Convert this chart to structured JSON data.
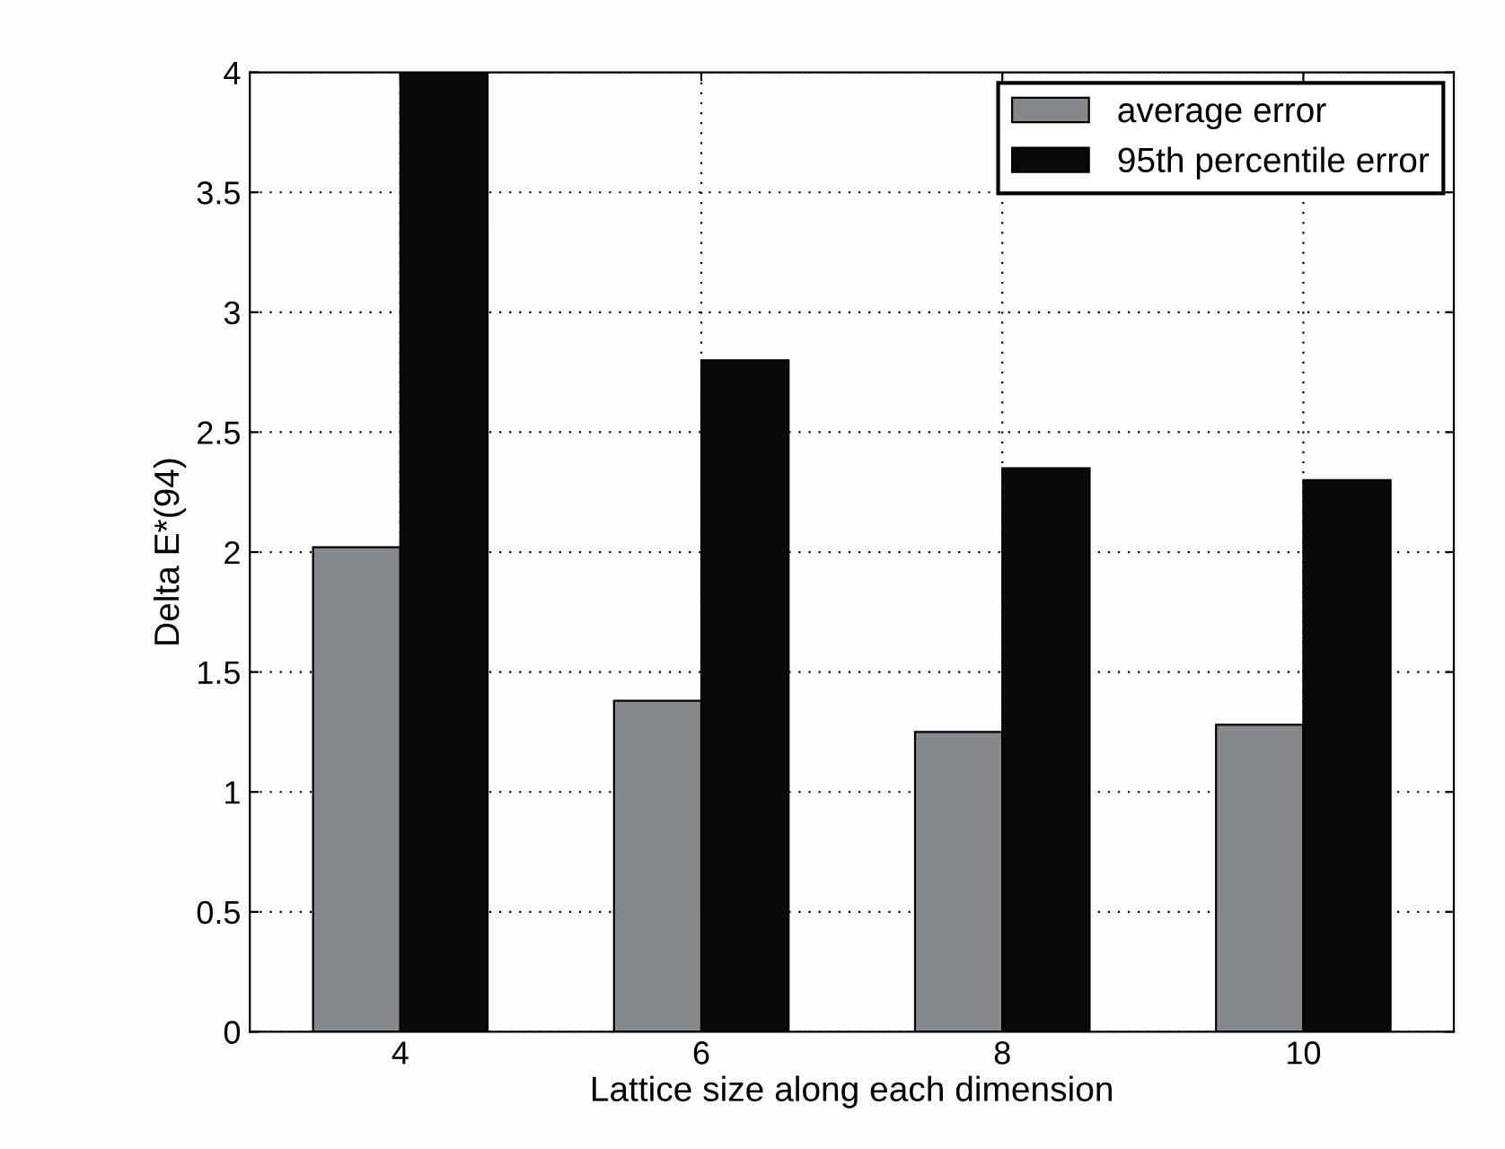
{
  "chart_data": {
    "type": "bar",
    "xlabel": "Lattice size along each dimension",
    "ylabel": "Delta E*(94)",
    "categories": [
      "4",
      "6",
      "8",
      "10"
    ],
    "series": [
      {
        "name": "average error",
        "color": "#85898c",
        "values": [
          2.02,
          1.38,
          1.25,
          1.28
        ]
      },
      {
        "name": "95th percentile error",
        "color": "#0a0a0a",
        "values": [
          4.0,
          2.8,
          2.35,
          2.3
        ]
      }
    ],
    "ylim": [
      0,
      4
    ],
    "yticks": [
      0,
      0.5,
      1,
      1.5,
      2,
      2.5,
      3,
      3.5,
      4
    ],
    "grid": true,
    "legend": "top right"
  }
}
